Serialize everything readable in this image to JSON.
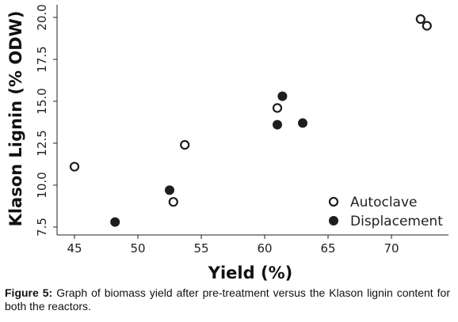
{
  "chart_data": {
    "type": "scatter",
    "xlabel": "Yield (%)",
    "ylabel": "Klason Lignin (% ODW)",
    "xlim": [
      42.5,
      74.5
    ],
    "ylim": [
      7.0,
      20.6
    ],
    "xticks": [
      45,
      50,
      55,
      60,
      65,
      70
    ],
    "yticks": [
      7.5,
      10.0,
      12.5,
      15.0,
      17.5,
      20.0
    ],
    "xtick_labels": [
      "45",
      "50",
      "55",
      "60",
      "65",
      "70"
    ],
    "ytick_labels": [
      "7.5",
      "10.0",
      "12.5",
      "15.0",
      "17.5",
      "20.0"
    ],
    "grid": false,
    "legend_position": "bottom-right",
    "series": [
      {
        "name": "Autoclave",
        "marker": "hollow-circle",
        "points": [
          {
            "x": 45.0,
            "y": 11.1
          },
          {
            "x": 52.8,
            "y": 9.0
          },
          {
            "x": 53.7,
            "y": 12.4
          },
          {
            "x": 61.0,
            "y": 14.6
          },
          {
            "x": 72.3,
            "y": 19.9
          },
          {
            "x": 72.8,
            "y": 19.5
          }
        ]
      },
      {
        "name": "Displacement",
        "marker": "filled-circle",
        "points": [
          {
            "x": 48.2,
            "y": 7.8
          },
          {
            "x": 52.5,
            "y": 9.7
          },
          {
            "x": 61.0,
            "y": 13.6
          },
          {
            "x": 61.4,
            "y": 15.3
          },
          {
            "x": 63.0,
            "y": 13.7
          }
        ]
      }
    ],
    "colors": {
      "marker": "#1e1e1e",
      "axis": "#222222"
    }
  },
  "caption": {
    "label": "Figure 5:",
    "text": " Graph of biomass yield after pre-treatment versus the Klason lignin content for both the reactors."
  }
}
